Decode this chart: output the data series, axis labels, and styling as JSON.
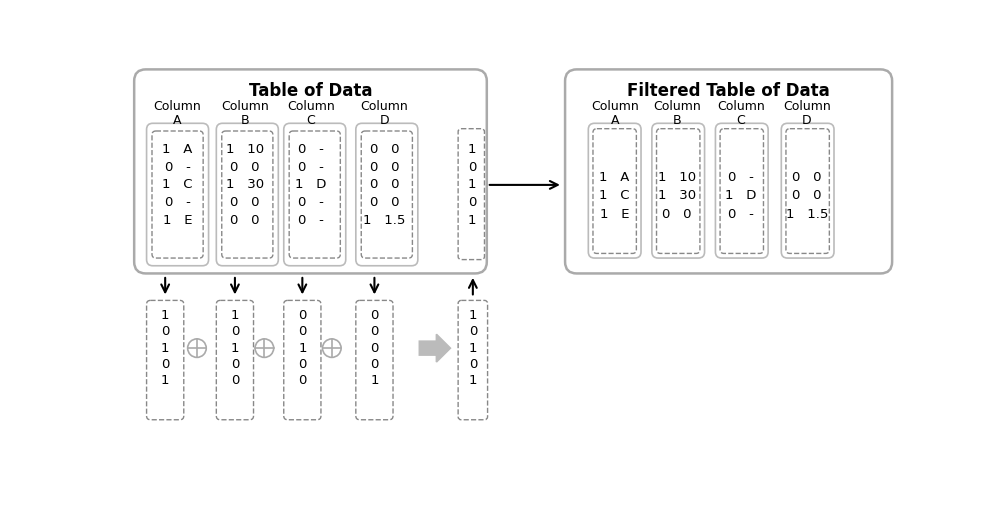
{
  "title_left": "Table of Data",
  "title_right": "Filtered Table of Data",
  "top_col_data": {
    "A": [
      "1   A",
      "0   -",
      "1   C",
      "0   -",
      "1   E"
    ],
    "B": [
      "1   10",
      "0   0",
      "1   30",
      "0   0",
      "0   0"
    ],
    "C": [
      "0   -",
      "0   -",
      "1   D",
      "0   -",
      "0   -"
    ],
    "D": [
      "0   0",
      "0   0",
      "0   0",
      "0   0",
      "1   1.5"
    ]
  },
  "top_filter_col": [
    "1",
    "0",
    "1",
    "0",
    "1"
  ],
  "bottom_col_data": {
    "A": [
      "1",
      "0",
      "1",
      "0",
      "1"
    ],
    "B": [
      "1",
      "0",
      "1",
      "0",
      "0"
    ],
    "C": [
      "0",
      "0",
      "1",
      "0",
      "0"
    ],
    "D": [
      "0",
      "0",
      "0",
      "0",
      "1"
    ]
  },
  "bottom_result_col": [
    "1",
    "0",
    "1",
    "0",
    "1"
  ],
  "filtered_col_data": {
    "A": [
      "1   A",
      "1   C",
      "1   E"
    ],
    "B": [
      "1   10",
      "1   30",
      "0   0"
    ],
    "C": [
      "0   -",
      "1   D",
      "0   -"
    ],
    "D": [
      "0   0",
      "0   0",
      "1   1.5"
    ]
  },
  "bg_color": "#ffffff",
  "box_dash_color": "#888888",
  "outer_box_color": "#aaaaaa",
  "text_color": "#000000",
  "arrow_color": "#000000",
  "oplus_color": "#aaaaaa",
  "fat_arrow_color": "#bbbbbb",
  "inner_solid_color": "#bbbbbb"
}
